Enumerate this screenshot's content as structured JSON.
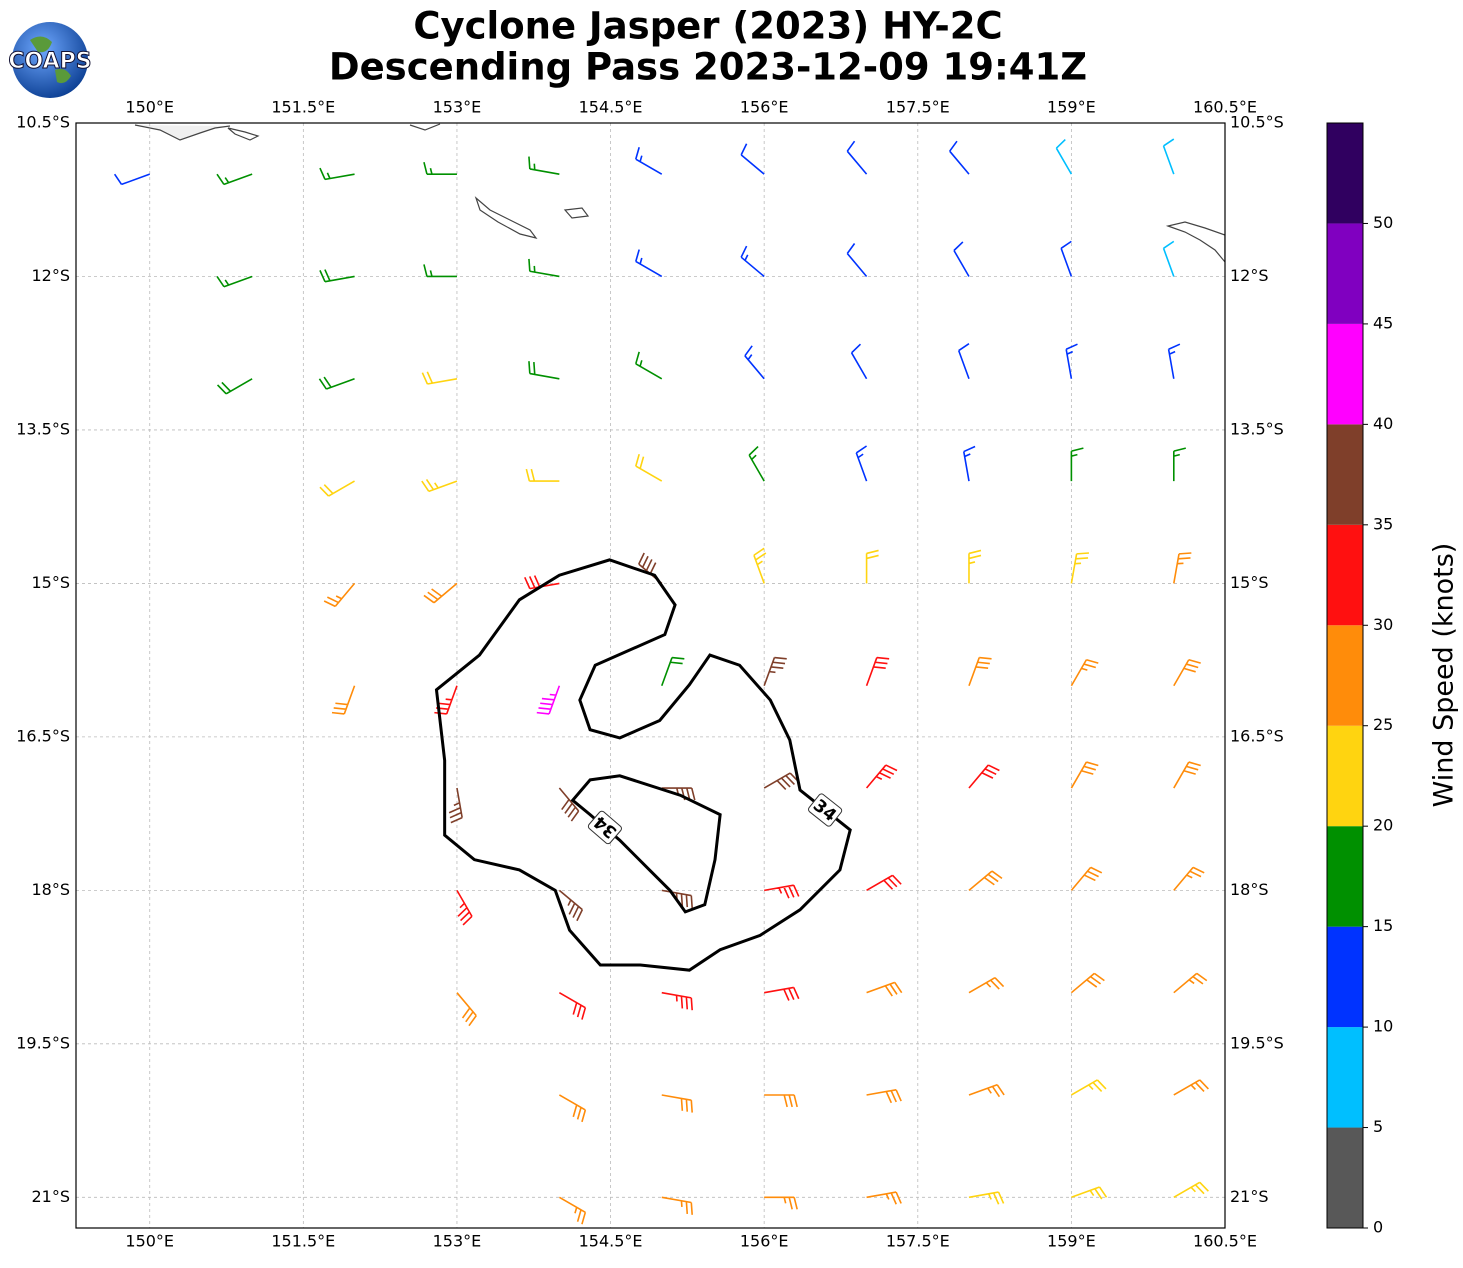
{
  "logo": "COAPS",
  "chart_data": {
    "type": "wind_barbs",
    "title": "Cyclone Jasper (2023) HY-2C",
    "subtitle": "Descending Pass 2023-12-09 19:41Z",
    "xlim": [
      149.28,
      160.5
    ],
    "ylim": [
      -21.3,
      -10.5
    ],
    "grid": true,
    "xticks": [
      {
        "value": 150,
        "label": "150°E"
      },
      {
        "value": 151.5,
        "label": "151.5°E"
      },
      {
        "value": 153,
        "label": "153°E"
      },
      {
        "value": 154.5,
        "label": "154.5°E"
      },
      {
        "value": 156,
        "label": "156°E"
      },
      {
        "value": 157.5,
        "label": "157.5°E"
      },
      {
        "value": 159,
        "label": "159°E"
      },
      {
        "value": 160.5,
        "label": "160.5°E"
      }
    ],
    "yticks": [
      {
        "value": -10.5,
        "label": "10.5°S"
      },
      {
        "value": -12,
        "label": "12°S"
      },
      {
        "value": -13.5,
        "label": "13.5°S"
      },
      {
        "value": -15,
        "label": "15°S"
      },
      {
        "value": -16.5,
        "label": "16.5°S"
      },
      {
        "value": -18,
        "label": "18°S"
      },
      {
        "value": -19.5,
        "label": "19.5°S"
      },
      {
        "value": -21,
        "label": "21°S"
      }
    ],
    "barbs": [
      {
        "lat": -11,
        "lon": [
          150,
          151,
          152,
          153,
          154,
          155,
          156,
          157,
          158,
          159,
          160
        ],
        "speed": [
          12,
          17,
          17,
          17,
          17,
          13,
          12,
          12,
          12,
          8,
          8
        ],
        "direction": [
          250,
          250,
          260,
          270,
          280,
          300,
          310,
          320,
          320,
          330,
          340
        ]
      },
      {
        "lat": -12,
        "lon": [
          151,
          152,
          153,
          154,
          155,
          156,
          157,
          158,
          159,
          160
        ],
        "speed": [
          17,
          18,
          17,
          17,
          14,
          13,
          12,
          12,
          11,
          9
        ],
        "direction": [
          250,
          260,
          270,
          280,
          300,
          310,
          320,
          330,
          340,
          340
        ]
      },
      {
        "lat": -13,
        "lon": [
          151,
          152,
          153,
          154,
          155,
          156,
          157,
          158,
          159,
          160
        ],
        "speed": [
          18,
          18,
          21,
          19,
          17,
          13,
          12,
          12,
          13,
          13
        ],
        "direction": [
          240,
          250,
          260,
          280,
          300,
          320,
          330,
          340,
          350,
          350
        ]
      },
      {
        "lat": -14,
        "lon": [
          152,
          153,
          154,
          155,
          156,
          157,
          158,
          159,
          160
        ],
        "speed": [
          22,
          23,
          22,
          21,
          17,
          14,
          14,
          16,
          17
        ],
        "direction": [
          240,
          250,
          270,
          300,
          330,
          340,
          350,
          0,
          0
        ]
      },
      {
        "lat": -15,
        "lon": [
          152,
          153,
          154,
          155,
          156,
          157,
          158,
          159,
          160
        ],
        "speed": [
          27,
          28,
          32,
          38,
          24,
          22,
          23,
          23,
          26
        ],
        "direction": [
          220,
          230,
          260,
          310,
          340,
          0,
          0,
          10,
          10
        ]
      },
      {
        "lat": -16,
        "lon": [
          152,
          153,
          154,
          155,
          156,
          157,
          158,
          159,
          160
        ],
        "speed": [
          28,
          33,
          44,
          18,
          37,
          32,
          28,
          27,
          28
        ],
        "direction": [
          200,
          200,
          200,
          20,
          20,
          20,
          20,
          30,
          30
        ]
      },
      {
        "lat": -17,
        "lon": [
          153,
          154,
          155,
          156,
          157,
          158,
          159,
          160
        ],
        "speed": [
          37,
          38,
          37,
          38,
          33,
          31,
          28,
          28
        ],
        "direction": [
          170,
          140,
          90,
          60,
          40,
          40,
          30,
          30
        ]
      },
      {
        "lat": -18,
        "lon": [
          153,
          154,
          155,
          156,
          157,
          158,
          159,
          160
        ],
        "speed": [
          33,
          36,
          37,
          34,
          32,
          29,
          28,
          27
        ],
        "direction": [
          150,
          130,
          100,
          80,
          60,
          50,
          40,
          40
        ]
      },
      {
        "lat": -19,
        "lon": [
          153,
          154,
          155,
          156,
          157,
          158,
          159,
          160
        ],
        "speed": [
          29,
          32,
          33,
          32,
          29,
          27,
          28,
          27
        ],
        "direction": [
          140,
          120,
          100,
          80,
          70,
          60,
          50,
          50
        ]
      },
      {
        "lat": -20,
        "lon": [
          154,
          155,
          156,
          157,
          158,
          159,
          160
        ],
        "speed": [
          28,
          29,
          29,
          28,
          27,
          24,
          26
        ],
        "direction": [
          120,
          100,
          90,
          80,
          70,
          60,
          60
        ]
      },
      {
        "lat": -21,
        "lon": [
          154,
          155,
          156,
          157,
          158,
          159,
          160
        ],
        "speed": [
          26,
          27,
          27,
          26,
          24,
          23,
          24
        ],
        "direction": [
          120,
          100,
          90,
          80,
          80,
          70,
          60
        ]
      }
    ],
    "contours": [
      {
        "level": 34,
        "lon": [
          152.8,
          153.22,
          153.61,
          154.0,
          154.49,
          154.93,
          155.13,
          155.03,
          154.69,
          154.35,
          154.2,
          154.3,
          154.59,
          154.98,
          155.27,
          155.47,
          155.76,
          156.06,
          156.25,
          156.35,
          156.84,
          156.74,
          156.35,
          155.96,
          155.57,
          155.27,
          154.79,
          154.4,
          154.1,
          153.96,
          153.61,
          153.17,
          152.88,
          152.88
        ],
        "lat": [
          -16.04,
          -15.7,
          -15.16,
          -14.92,
          -14.77,
          -14.92,
          -15.21,
          -15.5,
          -15.65,
          -15.8,
          -16.14,
          -16.43,
          -16.51,
          -16.34,
          -15.99,
          -15.7,
          -15.8,
          -16.14,
          -16.53,
          -17.02,
          -17.41,
          -17.8,
          -18.19,
          -18.44,
          -18.58,
          -18.78,
          -18.73,
          -18.73,
          -18.39,
          -18.0,
          -17.8,
          -17.7,
          -17.46,
          -16.73
        ]
      },
      {
        "level": 34,
        "lon": [
          154.3,
          154.59,
          155.18,
          155.57,
          155.52,
          155.42,
          155.23,
          155.08,
          154.88,
          154.59,
          154.3,
          154.13
        ],
        "lat": [
          -16.92,
          -16.88,
          -17.07,
          -17.26,
          -17.7,
          -18.14,
          -18.21,
          -18.0,
          -17.8,
          -17.51,
          -17.26,
          -17.12
        ]
      }
    ],
    "colorbar": {
      "label": "Wind Speed (knots)",
      "lim": [
        0,
        55
      ],
      "ticks": [
        0,
        5,
        10,
        15,
        20,
        25,
        30,
        35,
        40,
        45,
        50
      ],
      "bounds": [
        0,
        5,
        10,
        15,
        20,
        25,
        30,
        35,
        40,
        45,
        50,
        55
      ],
      "colors": [
        "#585858",
        "#00bfff",
        "#0033ff",
        "#009000",
        "#ffd410",
        "#ff8c0a",
        "#ff1010",
        "#7f3f2a",
        "#ff00ff",
        "#8000c0",
        "#300060"
      ]
    }
  }
}
